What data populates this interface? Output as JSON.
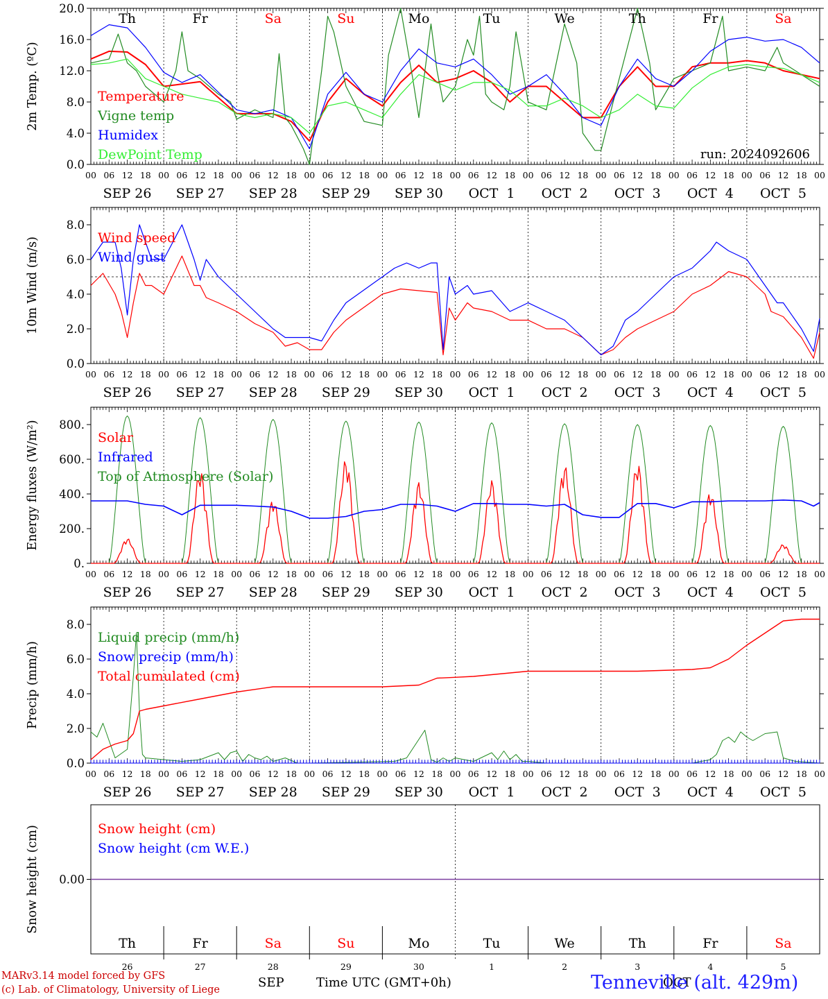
{
  "run_label": "run: 2024092606",
  "days": {
    "names": [
      "Th",
      "Fr",
      "Sa",
      "Su",
      "Mo",
      "Tu",
      "We",
      "Th",
      "Fr",
      "Sa"
    ],
    "weekend": [
      false,
      false,
      true,
      true,
      false,
      false,
      false,
      false,
      false,
      true
    ],
    "date_labels": [
      "SEP 26",
      "SEP 27",
      "SEP 28",
      "SEP 29",
      "SEP 30",
      "OCT  1",
      "OCT  2",
      "OCT  3",
      "OCT  4",
      "OCT  5"
    ],
    "day_numbers": [
      "26",
      "27",
      "28",
      "29",
      "30",
      "1",
      "2",
      "3",
      "4",
      "5"
    ],
    "hour_ticks": [
      "00",
      "06",
      "12",
      "18"
    ],
    "final_hour": "00"
  },
  "colors": {
    "red": "#ff0000",
    "green": "#228b22",
    "blue": "#0000ff",
    "lightgreen": "#33ee33",
    "purple": "#7b3fa0",
    "darkred": "#cc0000"
  },
  "footer": {
    "model": "MARv3.14 model forced by GFS",
    "lab": "(c) Lab. of Climatology, University of Liege",
    "month_sep": "SEP",
    "month_oct": "OCT",
    "xlabel": "Time UTC (GMT+0h)",
    "station": "Tenneville (alt. 429m)"
  },
  "chart_data": [
    {
      "id": "temperature",
      "type": "line",
      "ylabel": "2m Temp. (ºC)",
      "ylim": [
        0,
        20
      ],
      "yticks": [
        "0.0",
        "4.0",
        "8.0",
        "12.0",
        "16.0",
        "20.0"
      ],
      "x_unit": "hours since SEP 26 00 UTC",
      "series": [
        {
          "name": "Temperature",
          "color": "#ff0000",
          "width": 2,
          "x": [
            0,
            6,
            12,
            18,
            24,
            36,
            48,
            60,
            66,
            72,
            78,
            84,
            90,
            96,
            102,
            108,
            114,
            120,
            126,
            132,
            138,
            144,
            150,
            156,
            162,
            168,
            174,
            180,
            186,
            192,
            198,
            204,
            210,
            216,
            222,
            228,
            234,
            240
          ],
          "y": [
            13.5,
            14.5,
            14.4,
            12.8,
            10,
            10.6,
            6.5,
            6.5,
            5.5,
            3,
            8,
            11,
            9,
            7.5,
            10.5,
            12.7,
            10.5,
            11,
            12,
            10.5,
            8,
            10,
            10,
            8,
            6,
            6,
            10,
            12.5,
            10,
            10,
            12.5,
            13,
            13,
            13.3,
            13,
            12,
            11.5,
            11
          ]
        },
        {
          "name": "Vigne temp",
          "color": "#228b22",
          "width": 1.2,
          "x": [
            0,
            6,
            9,
            12,
            15,
            18,
            24,
            28,
            30,
            32,
            36,
            42,
            46,
            48,
            54,
            60,
            62,
            64,
            66,
            68,
            70,
            72,
            76,
            78,
            80,
            84,
            90,
            96,
            98,
            102,
            106,
            108,
            112,
            114,
            116,
            120,
            124,
            126,
            128,
            130,
            132,
            136,
            138,
            140,
            144,
            150,
            156,
            160,
            162,
            166,
            168,
            172,
            180,
            184,
            186,
            192,
            198,
            204,
            208,
            210,
            216,
            222,
            226,
            228,
            232,
            236,
            240
          ],
          "y": [
            13,
            13.5,
            16.7,
            13,
            12,
            10,
            8,
            12,
            17,
            12,
            11,
            9,
            8,
            5.8,
            7,
            6,
            14.2,
            6,
            5,
            3.5,
            2,
            0,
            12,
            19,
            17,
            10,
            5.5,
            5,
            14,
            20,
            11,
            6,
            18,
            12,
            8,
            10,
            16,
            14,
            19,
            9,
            8,
            7,
            10,
            17,
            8,
            7,
            18,
            13,
            4,
            1.8,
            1.8,
            8,
            20,
            13,
            7,
            11,
            12,
            13,
            19,
            12,
            12.5,
            12,
            15,
            13,
            12,
            11,
            10
          ]
        },
        {
          "name": "Humidex",
          "color": "#0000ff",
          "width": 1.2,
          "x": [
            0,
            6,
            12,
            18,
            24,
            30,
            36,
            48,
            54,
            60,
            66,
            72,
            78,
            84,
            90,
            96,
            102,
            108,
            114,
            120,
            126,
            132,
            138,
            144,
            150,
            156,
            162,
            168,
            174,
            180,
            186,
            192,
            198,
            204,
            210,
            216,
            222,
            228,
            234,
            240
          ],
          "y": [
            16.5,
            17.9,
            17.5,
            15,
            11.8,
            10.5,
            11.5,
            7,
            6.5,
            7,
            6,
            2,
            9,
            11.8,
            9,
            8,
            12,
            14.8,
            13,
            12.5,
            13.5,
            11.5,
            9,
            10,
            11.5,
            9,
            6,
            5,
            10,
            13.5,
            11,
            10,
            12,
            14.5,
            16,
            16.3,
            15.8,
            16,
            15,
            13
          ]
        },
        {
          "name": "DewPoint Temp",
          "color": "#33ee33",
          "width": 1.2,
          "x": [
            0,
            6,
            12,
            18,
            24,
            30,
            36,
            42,
            48,
            54,
            60,
            66,
            72,
            78,
            84,
            90,
            96,
            102,
            108,
            114,
            120,
            126,
            132,
            138,
            144,
            150,
            156,
            162,
            168,
            174,
            180,
            186,
            192,
            198,
            204,
            210,
            216,
            222,
            228,
            234,
            240
          ],
          "y": [
            12.8,
            13,
            13.5,
            11,
            10,
            9,
            8.5,
            8,
            6.5,
            6,
            6.5,
            6,
            4,
            7.5,
            8,
            7,
            6,
            9,
            11.5,
            10.5,
            9.5,
            10.5,
            10.5,
            9.5,
            7.5,
            7.5,
            8.5,
            7.5,
            6,
            7,
            9,
            7.5,
            7.2,
            9.8,
            11.5,
            12.5,
            12.8,
            12.5,
            12.3,
            11.5,
            10.5
          ]
        }
      ]
    },
    {
      "id": "wind",
      "type": "line",
      "ylabel": "10m Wind (m/s)",
      "ylim": [
        0,
        9
      ],
      "yticks": [
        "0.0",
        "2.0",
        "4.0",
        "6.0",
        "8.0"
      ],
      "x_unit": "hours since SEP 26 00 UTC",
      "reference_line": 5,
      "series": [
        {
          "name": "Wind speed",
          "color": "#ff0000",
          "width": 1.2,
          "x": [
            0,
            4,
            8,
            10,
            12,
            14,
            16,
            18,
            20,
            24,
            30,
            34,
            36,
            38,
            42,
            48,
            54,
            60,
            64,
            68,
            72,
            76,
            80,
            84,
            88,
            92,
            96,
            102,
            108,
            114,
            116,
            118,
            120,
            124,
            126,
            132,
            138,
            144,
            150,
            156,
            162,
            168,
            172,
            176,
            180,
            186,
            192,
            198,
            204,
            210,
            216,
            222,
            224,
            228,
            234,
            238,
            240
          ],
          "y": [
            4.5,
            5.2,
            4,
            3,
            1.5,
            3.5,
            5.2,
            4.5,
            4.5,
            4,
            6.2,
            4.5,
            4.5,
            3.8,
            3.5,
            3,
            2.3,
            1.8,
            1,
            1.2,
            0.8,
            0.8,
            1.8,
            2.5,
            3,
            3.5,
            4,
            4.3,
            4.2,
            4.1,
            0.5,
            3.2,
            2.5,
            3.5,
            3.2,
            3,
            2.5,
            2.5,
            2,
            2,
            1.5,
            0.5,
            0.8,
            1.5,
            2,
            2.5,
            3,
            4,
            4.5,
            5.3,
            5,
            4,
            3,
            2.7,
            1.5,
            0.3,
            1.8
          ]
        },
        {
          "name": "Wind gust",
          "color": "#0000ff",
          "width": 1.2,
          "x": [
            0,
            4,
            8,
            10,
            12,
            14,
            16,
            18,
            20,
            24,
            30,
            34,
            36,
            38,
            42,
            48,
            54,
            60,
            64,
            68,
            72,
            76,
            80,
            84,
            88,
            92,
            96,
            100,
            104,
            108,
            112,
            114,
            116,
            118,
            120,
            124,
            126,
            132,
            138,
            144,
            150,
            156,
            162,
            168,
            172,
            176,
            180,
            186,
            192,
            198,
            204,
            206,
            210,
            216,
            222,
            226,
            228,
            234,
            238,
            240
          ],
          "y": [
            6,
            7,
            7,
            5.5,
            2.8,
            6,
            8,
            7,
            6,
            6,
            8,
            6,
            4.8,
            6,
            5,
            4,
            3,
            2,
            1.5,
            1.5,
            1.5,
            1.3,
            2.5,
            3.5,
            4,
            4.5,
            5,
            5.5,
            5.8,
            5.5,
            5.8,
            5.8,
            0.8,
            5,
            4,
            4.5,
            4,
            4.2,
            3,
            3.5,
            3,
            2.5,
            1.5,
            0.5,
            1,
            2.5,
            3,
            4,
            5,
            5.5,
            6.5,
            7,
            6.5,
            6,
            4.5,
            3.5,
            3.5,
            2,
            0.7,
            2.6
          ]
        }
      ]
    },
    {
      "id": "energy",
      "type": "line",
      "ylabel": "Energy fluxes (W/m²)",
      "ylim": [
        0,
        900
      ],
      "yticks": [
        "0.",
        "200.",
        "400.",
        "600.",
        "800."
      ],
      "x_unit": "hours since SEP 26 00 UTC",
      "solar_peaks": [
        145,
        540,
        370,
        605,
        470,
        480,
        570,
        585,
        415,
        110
      ],
      "toa_peaks": [
        850,
        840,
        830,
        820,
        815,
        810,
        805,
        800,
        795,
        790
      ],
      "series": [
        {
          "name": "Solar",
          "color": "#ff0000",
          "width": 1.2
        },
        {
          "name": "Infrared",
          "color": "#0000ff",
          "width": 1.6,
          "x": [
            0,
            6,
            12,
            18,
            24,
            30,
            36,
            42,
            48,
            54,
            60,
            66,
            72,
            78,
            84,
            90,
            96,
            102,
            108,
            114,
            120,
            126,
            132,
            138,
            144,
            150,
            156,
            162,
            168,
            174,
            180,
            186,
            192,
            198,
            204,
            210,
            216,
            222,
            228,
            234,
            238,
            240
          ],
          "y": [
            360,
            360,
            360,
            340,
            330,
            280,
            335,
            335,
            335,
            330,
            325,
            300,
            260,
            260,
            270,
            300,
            310,
            340,
            340,
            330,
            300,
            345,
            345,
            340,
            340,
            330,
            340,
            280,
            265,
            265,
            345,
            345,
            320,
            355,
            355,
            360,
            360,
            360,
            365,
            360,
            330,
            350
          ]
        },
        {
          "name": "Top of Atmosphere (Solar)",
          "color": "#228b22",
          "width": 1
        }
      ]
    },
    {
      "id": "precip",
      "type": "line",
      "ylabel": "Precip (mm/h)",
      "ylim": [
        0,
        9
      ],
      "yticks": [
        "0.0",
        "2.0",
        "4.0",
        "6.0",
        "8.0"
      ],
      "x_unit": "hours since SEP 26 00 UTC",
      "series": [
        {
          "name": "Liquid precip (mm/h)",
          "color": "#228b22",
          "width": 1,
          "x": [
            0,
            2,
            4,
            8,
            12,
            14,
            15,
            16,
            17,
            18,
            24,
            30,
            36,
            42,
            44,
            46,
            48,
            50,
            52,
            54,
            56,
            58,
            60,
            62,
            64,
            68,
            70,
            72,
            100,
            104,
            110,
            112,
            114,
            116,
            118,
            120,
            126,
            132,
            134,
            136,
            138,
            140,
            142,
            144,
            150,
            160,
            170,
            180,
            198,
            204,
            206,
            208,
            210,
            212,
            214,
            216,
            218,
            222,
            226,
            228,
            232,
            240
          ],
          "y": [
            1.8,
            1.5,
            2.3,
            0.3,
            0.8,
            5,
            7.5,
            3,
            0.5,
            0.3,
            0.2,
            0.1,
            0.2,
            0.6,
            0.2,
            0.6,
            0.7,
            0.1,
            0.5,
            0.3,
            0.2,
            0.4,
            0.1,
            0.2,
            0.3,
            0,
            0,
            0,
            0.1,
            0.3,
            1.9,
            0.2,
            0.05,
            0.3,
            0.1,
            0.3,
            0.1,
            0.6,
            0.2,
            0.7,
            0.2,
            0.5,
            0.1,
            0.1,
            0,
            0,
            0,
            0,
            0,
            0.2,
            0.5,
            1.3,
            1.5,
            1.2,
            1.8,
            1.5,
            1.3,
            1.7,
            1.8,
            0.3,
            0.1,
            0
          ]
        },
        {
          "name": "Snow precip (mm/h)",
          "color": "#0000ff",
          "width": 1,
          "x": [
            0,
            240
          ],
          "y": [
            0,
            0
          ]
        },
        {
          "name": "Total cumulated (cm)",
          "color": "#ff0000",
          "width": 1.4,
          "x": [
            0,
            4,
            8,
            12,
            14,
            16,
            18,
            24,
            36,
            48,
            60,
            72,
            96,
            108,
            114,
            120,
            126,
            132,
            144,
            156,
            168,
            180,
            198,
            204,
            210,
            216,
            222,
            228,
            234,
            240
          ],
          "y": [
            0.2,
            0.8,
            1.1,
            1.3,
            1.7,
            3,
            3.1,
            3.3,
            3.7,
            4.1,
            4.4,
            4.4,
            4.4,
            4.5,
            4.9,
            4.95,
            5,
            5.1,
            5.3,
            5.3,
            5.3,
            5.3,
            5.4,
            5.5,
            6,
            6.8,
            7.5,
            8.2,
            8.3,
            8.3
          ]
        }
      ]
    },
    {
      "id": "snow",
      "type": "line",
      "ylabel": "Snow height (cm)",
      "ylim": [
        -1,
        1
      ],
      "yticks": [
        "0.00"
      ],
      "x_unit": "hours since SEP 26 00 UTC",
      "series": [
        {
          "name": "Snow height (cm)",
          "color": "#ff0000",
          "width": 1
        },
        {
          "name": "Snow height (cm W.E.)",
          "color": "#0000ff",
          "width": 1
        }
      ],
      "combined_line": {
        "color": "#7b3fa0",
        "value": 0
      }
    }
  ]
}
